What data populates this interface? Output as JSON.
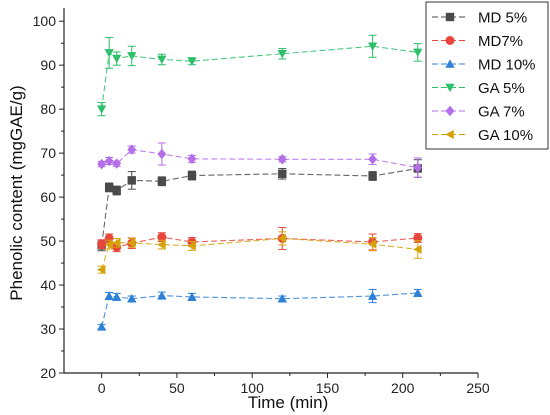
{
  "chart_data": {
    "type": "scatter",
    "xlabel": "Time (min)",
    "ylabel": "Phenolic content (mgGAE/g)",
    "xlim": [
      -25,
      250
    ],
    "ylim": [
      20,
      103
    ],
    "xticks": [
      0,
      50,
      100,
      150,
      200,
      250
    ],
    "yticks": [
      20,
      30,
      40,
      50,
      60,
      70,
      80,
      90,
      100
    ],
    "grid": false,
    "legend_position": "top-right",
    "series": [
      {
        "name": "MD 5%",
        "color": "#4a4a4a",
        "marker": "square",
        "x": [
          0,
          5,
          10,
          20,
          40,
          60,
          120,
          180,
          210
        ],
        "y": [
          49,
          62.2,
          61.5,
          63.8,
          63.6,
          64.9,
          65.3,
          64.8,
          66.5
        ],
        "err": [
          1.2,
          1.0,
          1.0,
          2.0,
          1.0,
          1.0,
          1.2,
          1.0,
          2.0
        ]
      },
      {
        "name": "MD7%",
        "color": "#e8453c",
        "marker": "circle",
        "x": [
          0,
          5,
          10,
          20,
          40,
          60,
          120,
          180,
          210
        ],
        "y": [
          49.3,
          50.6,
          48.6,
          49.5,
          50.9,
          49.8,
          50.6,
          49.8,
          50.7
        ],
        "err": [
          1.0,
          1.0,
          1.0,
          1.2,
          1.0,
          1.0,
          2.5,
          1.8,
          1.0
        ]
      },
      {
        "name": "MD 10%",
        "color": "#2e7fd6",
        "marker": "triangle-up",
        "x": [
          0,
          5,
          10,
          20,
          40,
          60,
          120,
          180,
          210
        ],
        "y": [
          30.5,
          37.5,
          37.3,
          36.9,
          37.6,
          37.3,
          36.9,
          37.5,
          38.2
        ],
        "err": [
          0.5,
          0.8,
          0.8,
          0.6,
          0.8,
          0.8,
          0.6,
          1.5,
          0.8
        ]
      },
      {
        "name": "GA 5%",
        "color": "#2dbf6a",
        "marker": "triangle-down",
        "x": [
          0,
          5,
          10,
          20,
          40,
          60,
          120,
          180,
          210
        ],
        "y": [
          80,
          92.8,
          91.5,
          92.1,
          91.3,
          90.9,
          92.6,
          94.3,
          92.9
        ],
        "err": [
          1.5,
          3.5,
          1.5,
          2.2,
          1.2,
          0.8,
          1.2,
          2.5,
          2.0
        ]
      },
      {
        "name": "GA 7%",
        "color": "#b46ee8",
        "marker": "diamond",
        "x": [
          0,
          5,
          10,
          20,
          40,
          60,
          120,
          180,
          210
        ],
        "y": [
          67.5,
          68.2,
          67.6,
          70.8,
          69.8,
          68.7,
          68.6,
          68.6,
          66.7
        ],
        "err": [
          0.6,
          0.8,
          0.6,
          0.8,
          2.5,
          0.8,
          0.6,
          1.2,
          2.2
        ]
      },
      {
        "name": "GA 10%",
        "color": "#d6a20a",
        "marker": "triangle-left",
        "x": [
          0,
          5,
          10,
          20,
          40,
          60,
          120,
          180,
          210
        ],
        "y": [
          43.5,
          49.2,
          49.6,
          49.6,
          49.2,
          48.9,
          50.6,
          49.3,
          48.1
        ],
        "err": [
          0.8,
          1.0,
          1.0,
          1.0,
          1.0,
          1.0,
          1.5,
          1.5,
          2.0
        ]
      }
    ]
  }
}
